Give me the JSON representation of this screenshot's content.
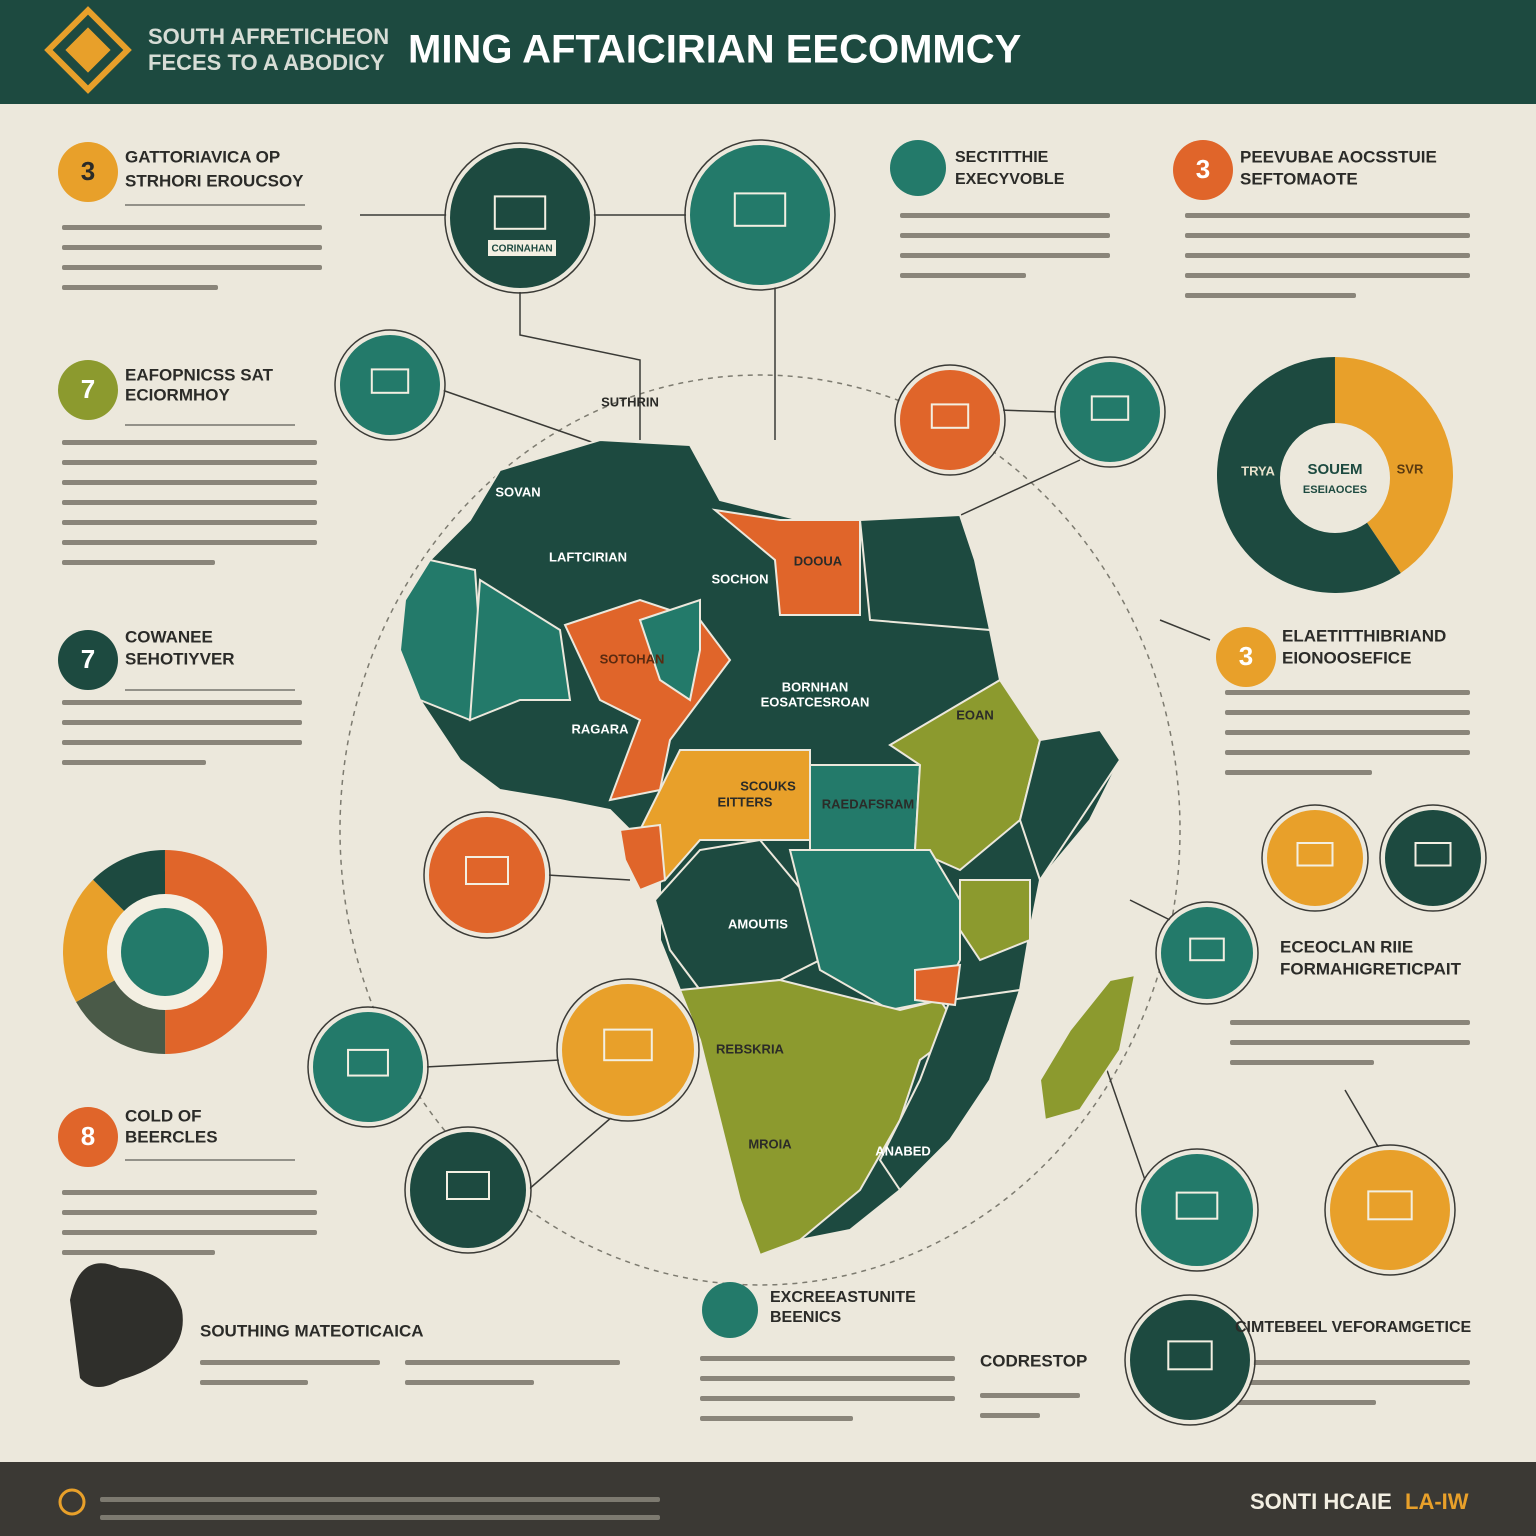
{
  "header": {
    "logo_line1": "SOUTH AFRETICHEON",
    "logo_line2": "FECES TO A ABODICY",
    "title": "MING AFTAICIRIAN EECOMMCY"
  },
  "sections": [
    {
      "number": "3",
      "title": [
        "GATTORIAVICA OP",
        "STRHORI EROUCSOY"
      ]
    },
    {
      "number": "7",
      "title": [
        "EAFOPNICSS SAT",
        "ECIORMHOY"
      ]
    },
    {
      "number": "7",
      "title": [
        "COWANEE",
        "SEHOTIYVER"
      ]
    },
    {
      "number": "8",
      "title": [
        "COLD OF",
        "BEERCLES"
      ]
    },
    {
      "number": "3",
      "title": [
        "PEEVUBAE AOCSSTUIE",
        "SEFTOMAOTE"
      ]
    },
    {
      "number": "3",
      "title": [
        "ELAETITTHIBRIAND",
        "EIONOOSEFICE"
      ]
    }
  ],
  "headings": {
    "top_middle": [
      "SECTITTHIE",
      "EXECYVOBLE"
    ],
    "right": [
      "ECEOCLAN RIIE",
      "FORMAHIGRETICPAIT"
    ],
    "bottom_left": "SOUTHING MATEOTICAICA",
    "bottom_middle": [
      "EXCREEASTUNITE",
      "BEENICS"
    ],
    "bottom_code": "CODRESTOP",
    "bottom_right": "CIMTEBEEL VEFORAMGETICE"
  },
  "icon_caption": "CORINAHAN",
  "map_labels": [
    "SUTHRIN",
    "SOVAN",
    "LAFTCIRIAN",
    "DOOUA",
    "SOCHON",
    "SOTOHAN",
    "BORNHAN",
    "EOSATCESROAN",
    "RAGARA",
    "SCOUKS",
    "EITTERS",
    "RAEDAFSRAM",
    "EOAN",
    "REBSKRIA",
    "MROIA",
    "ANABED",
    "AMOUTIS"
  ],
  "donut": {
    "center": [
      "SOUEM",
      "ESEIAOCES"
    ],
    "left": "TRYA",
    "right": "SVR"
  },
  "footer": {
    "brand": "SONTI HCAIE",
    "brand_accent": "LA-IW"
  }
}
